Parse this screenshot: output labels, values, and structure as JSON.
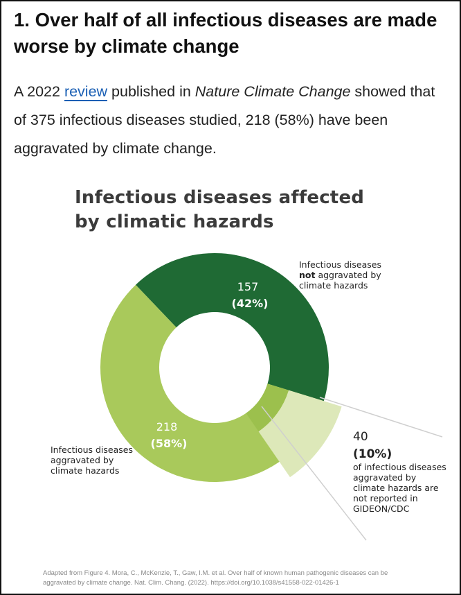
{
  "heading": "1. Over half of all infectious diseases are made worse by climate change",
  "paragraph": {
    "parts": [
      "A 2022 ",
      "review",
      " published in ",
      "Nature Climate Change",
      " showed that of 375 infectious diseases studied, 218 (58%) have been aggravated by climate change."
    ]
  },
  "chart_data": {
    "type": "donut",
    "title": "Infectious diseases affected by climatic hazards",
    "categories": [
      [
        "Infectious diseases ",
        "not",
        " aggravated by climate hazards"
      ],
      [
        "Infectious diseases aggravated by climate hazards"
      ]
    ],
    "values": [
      157,
      218
    ],
    "percent_labels": [
      "(42%)",
      "(58%)"
    ],
    "colors": [
      "#1f6a34",
      "#a9c95b"
    ],
    "subset": {
      "of": 1,
      "value": 40,
      "percent_label": "(10%)",
      "color": "#dde8b9",
      "inner_color": "#9cc04d",
      "label": "of infectious diseases aggravated by climate hazards are not reported in GIDEON/CDC"
    },
    "source": "Adapted from Figure 4. Mora, C., McKenzie, T., Gaw, I.M. et al. Over half of known human pathogenic diseases can be aggravated by climate change. Nat. Clim. Chang. (2022). https://doi.org/10.1038/s41558-022-01426-1"
  }
}
